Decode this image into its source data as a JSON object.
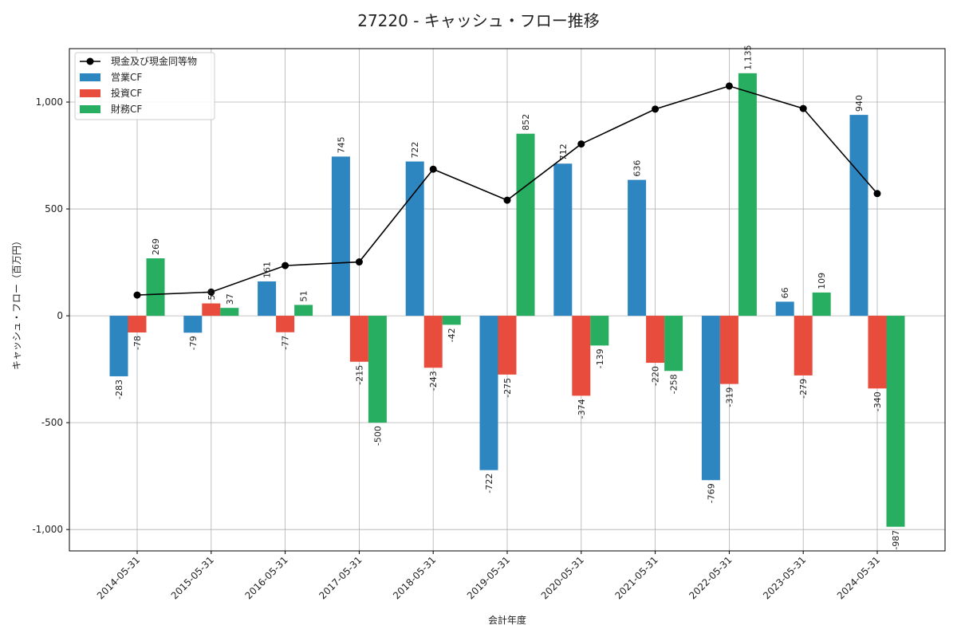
{
  "chart_data": {
    "type": "bar",
    "title": "27220 - キャッシュ・フロー推移",
    "xlabel": "会計年度",
    "ylabel": "キャッシュ・フロー（百万円）",
    "categories": [
      "2014-05-31",
      "2015-05-31",
      "2016-05-31",
      "2017-05-31",
      "2018-05-31",
      "2019-05-31",
      "2020-05-31",
      "2021-05-31",
      "2022-05-31",
      "2023-05-31",
      "2024-05-31"
    ],
    "ylim": [
      -1100,
      1250
    ],
    "yticks": [
      -1000,
      -500,
      0,
      500,
      1000
    ],
    "ytick_labels": [
      "-1,000",
      "-500",
      "0",
      "500",
      "1,000"
    ],
    "grid": true,
    "legend_position": "top-left",
    "series": [
      {
        "name": "営業CF",
        "type": "bar",
        "color": "#2e86c1",
        "values": [
          -283,
          -79,
          161,
          745,
          722,
          -722,
          712,
          636,
          -769,
          66,
          940
        ],
        "labels": [
          "-283",
          "-79",
          "161",
          "745",
          "722",
          "-722",
          "712",
          "636",
          "-769",
          "66",
          "940"
        ]
      },
      {
        "name": "投資CF",
        "type": "bar",
        "color": "#e74c3c",
        "values": [
          -78,
          58,
          -77,
          -215,
          -243,
          -275,
          -374,
          -220,
          -319,
          -279,
          -340
        ],
        "labels": [
          "-78",
          "58",
          "-77",
          "-215",
          "-243",
          "-275",
          "-374",
          "-220",
          "-319",
          "-279",
          "-340"
        ]
      },
      {
        "name": "財務CF",
        "type": "bar",
        "color": "#27ae60",
        "values": [
          269,
          37,
          51,
          -500,
          -42,
          852,
          -139,
          -258,
          1135,
          109,
          -987
        ],
        "labels": [
          "269",
          "37",
          "51",
          "-500",
          "-42",
          "852",
          "-139",
          "-258",
          "1,135",
          "109",
          "-987"
        ]
      },
      {
        "name": "現金及び現金同等物",
        "type": "line",
        "color": "#000000",
        "values": [
          97,
          111,
          235,
          252,
          686,
          541,
          804,
          967,
          1075,
          970,
          572
        ]
      }
    ]
  }
}
